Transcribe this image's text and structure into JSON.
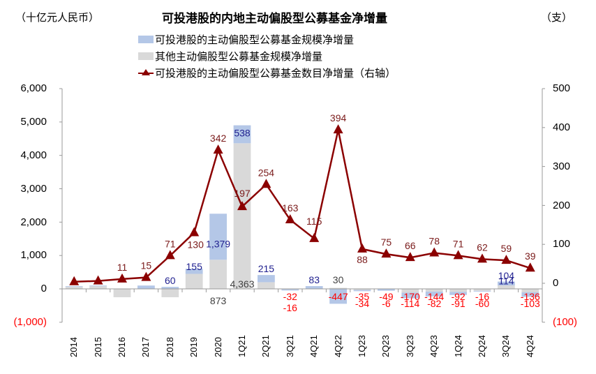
{
  "header": {
    "title": "可投港股的内地主动偏股型公募基金净增量",
    "left_unit": "（十亿元人民币）",
    "right_unit": "（支）"
  },
  "legend": [
    {
      "label": "可投港股的主动偏股型公募基金规模净增量",
      "type": "bar",
      "color": "#b4c7e7"
    },
    {
      "label": "其他主动偏股型公募基金规模净增量",
      "type": "bar",
      "color": "#d9d9d9"
    },
    {
      "label": "可投港股的主动偏股型公募基金数目净增量（右轴）",
      "type": "line-triangle",
      "color": "#8b0000"
    }
  ],
  "axes": {
    "left_ticks": [
      "6,000",
      "5,000",
      "4,000",
      "3,000",
      "2,000",
      "1,000",
      "0",
      "(1,000)"
    ],
    "right_ticks": [
      "500",
      "400",
      "300",
      "200",
      "100",
      "0",
      "(100)"
    ],
    "negative_tick_color": "#ff0000"
  },
  "chart_data": {
    "type": "bar",
    "title": "可投港股的内地主动偏股型公募基金净增量",
    "xlabel": "",
    "ylabel": "十亿元人民币",
    "y2label": "支",
    "ylim": [
      -1000,
      6000
    ],
    "y2lim": [
      -100,
      500
    ],
    "stacked": true,
    "categories": [
      "2014",
      "2015",
      "2016",
      "2017",
      "2018",
      "2019",
      "2020",
      "1Q21",
      "2Q21",
      "3Q21",
      "4Q21",
      "4Q22",
      "1Q23",
      "2Q23",
      "3Q23",
      "4Q23",
      "1Q24",
      "2Q24",
      "3Q24",
      "4Q24"
    ],
    "series": [
      {
        "name": "可投港股的主动偏股型公募基金规模净增量",
        "type": "bar",
        "axis": "left",
        "color": "#b4c7e7",
        "values": [
          20,
          20,
          10,
          100,
          60,
          155,
          1379,
          538,
          215,
          -32,
          83,
          -447,
          -35,
          -49,
          -170,
          -144,
          -92,
          -16,
          114,
          -136
        ],
        "labels": [
          "",
          "",
          "",
          "",
          "60",
          "155",
          "1,379",
          "538",
          "215",
          "-32",
          "83",
          "-447",
          "-35",
          "-49",
          "-170",
          "-144",
          "-92",
          "-16",
          "114",
          "-136"
        ]
      },
      {
        "name": "其他主动偏股型公募基金规模净增量",
        "type": "bar",
        "axis": "left",
        "color": "#d9d9d9",
        "values": [
          60,
          80,
          -250,
          0,
          -250,
          450,
          873,
          4363,
          200,
          -16,
          0,
          30,
          -34,
          -6,
          -114,
          -82,
          -91,
          -60,
          104,
          -103
        ],
        "labels": [
          "",
          "",
          "",
          "",
          "",
          "",
          "873",
          "4,363",
          "",
          "-16",
          "",
          "30",
          "-34",
          "-6",
          "-114",
          "-82",
          "-91",
          "-60",
          "104",
          "-103"
        ]
      },
      {
        "name": "可投港股的主动偏股型公募基金数目净增量（右轴）",
        "type": "line",
        "axis": "right",
        "color": "#8b0000",
        "marker": "triangle",
        "values": [
          4,
          6,
          11,
          15,
          71,
          130,
          342,
          197,
          254,
          163,
          115,
          394,
          88,
          75,
          66,
          78,
          71,
          62,
          59,
          39
        ],
        "labels": [
          "",
          "",
          "11",
          "15",
          "71",
          "130",
          "342",
          "197",
          "254",
          "163",
          "115",
          "394",
          "88",
          "75",
          "66",
          "78",
          "71",
          "62",
          "59",
          "39"
        ]
      }
    ],
    "legend_position": "top",
    "grid": false
  }
}
